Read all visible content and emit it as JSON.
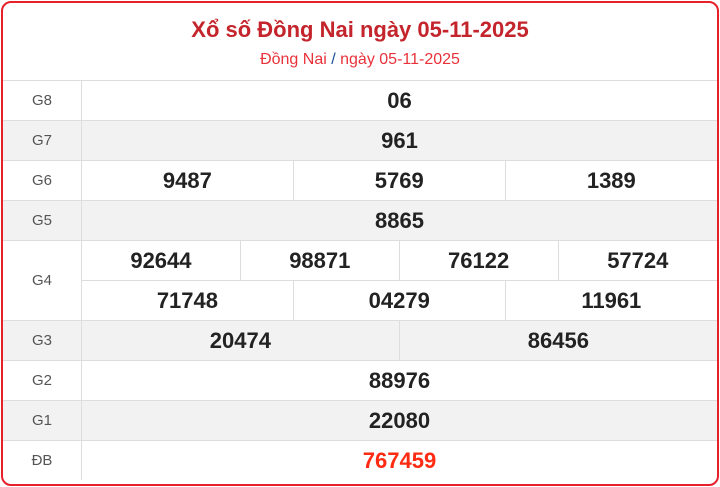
{
  "header": {
    "title": "Xổ số Đồng Nai ngày 05-11-2025",
    "breadcrumb_province": "Đồng Nai",
    "breadcrumb_separator": "/",
    "breadcrumb_date": "ngày 05-11-2025"
  },
  "colors": {
    "title": "#c4242c",
    "special_prize": "#ff2a12",
    "border": "#e8202a"
  },
  "prizes": {
    "g8": {
      "label": "G8",
      "numbers": [
        "06"
      ]
    },
    "g7": {
      "label": "G7",
      "numbers": [
        "961"
      ]
    },
    "g6": {
      "label": "G6",
      "numbers": [
        "9487",
        "5769",
        "1389"
      ]
    },
    "g5": {
      "label": "G5",
      "numbers": [
        "8865"
      ]
    },
    "g4": {
      "label": "G4",
      "numbers": [
        "92644",
        "98871",
        "76122",
        "57724",
        "71748",
        "04279",
        "11961"
      ]
    },
    "g3": {
      "label": "G3",
      "numbers": [
        "20474",
        "86456"
      ]
    },
    "g2": {
      "label": "G2",
      "numbers": [
        "88976"
      ]
    },
    "g1": {
      "label": "G1",
      "numbers": [
        "22080"
      ]
    },
    "db": {
      "label": "ĐB",
      "numbers": [
        "767459"
      ]
    }
  }
}
